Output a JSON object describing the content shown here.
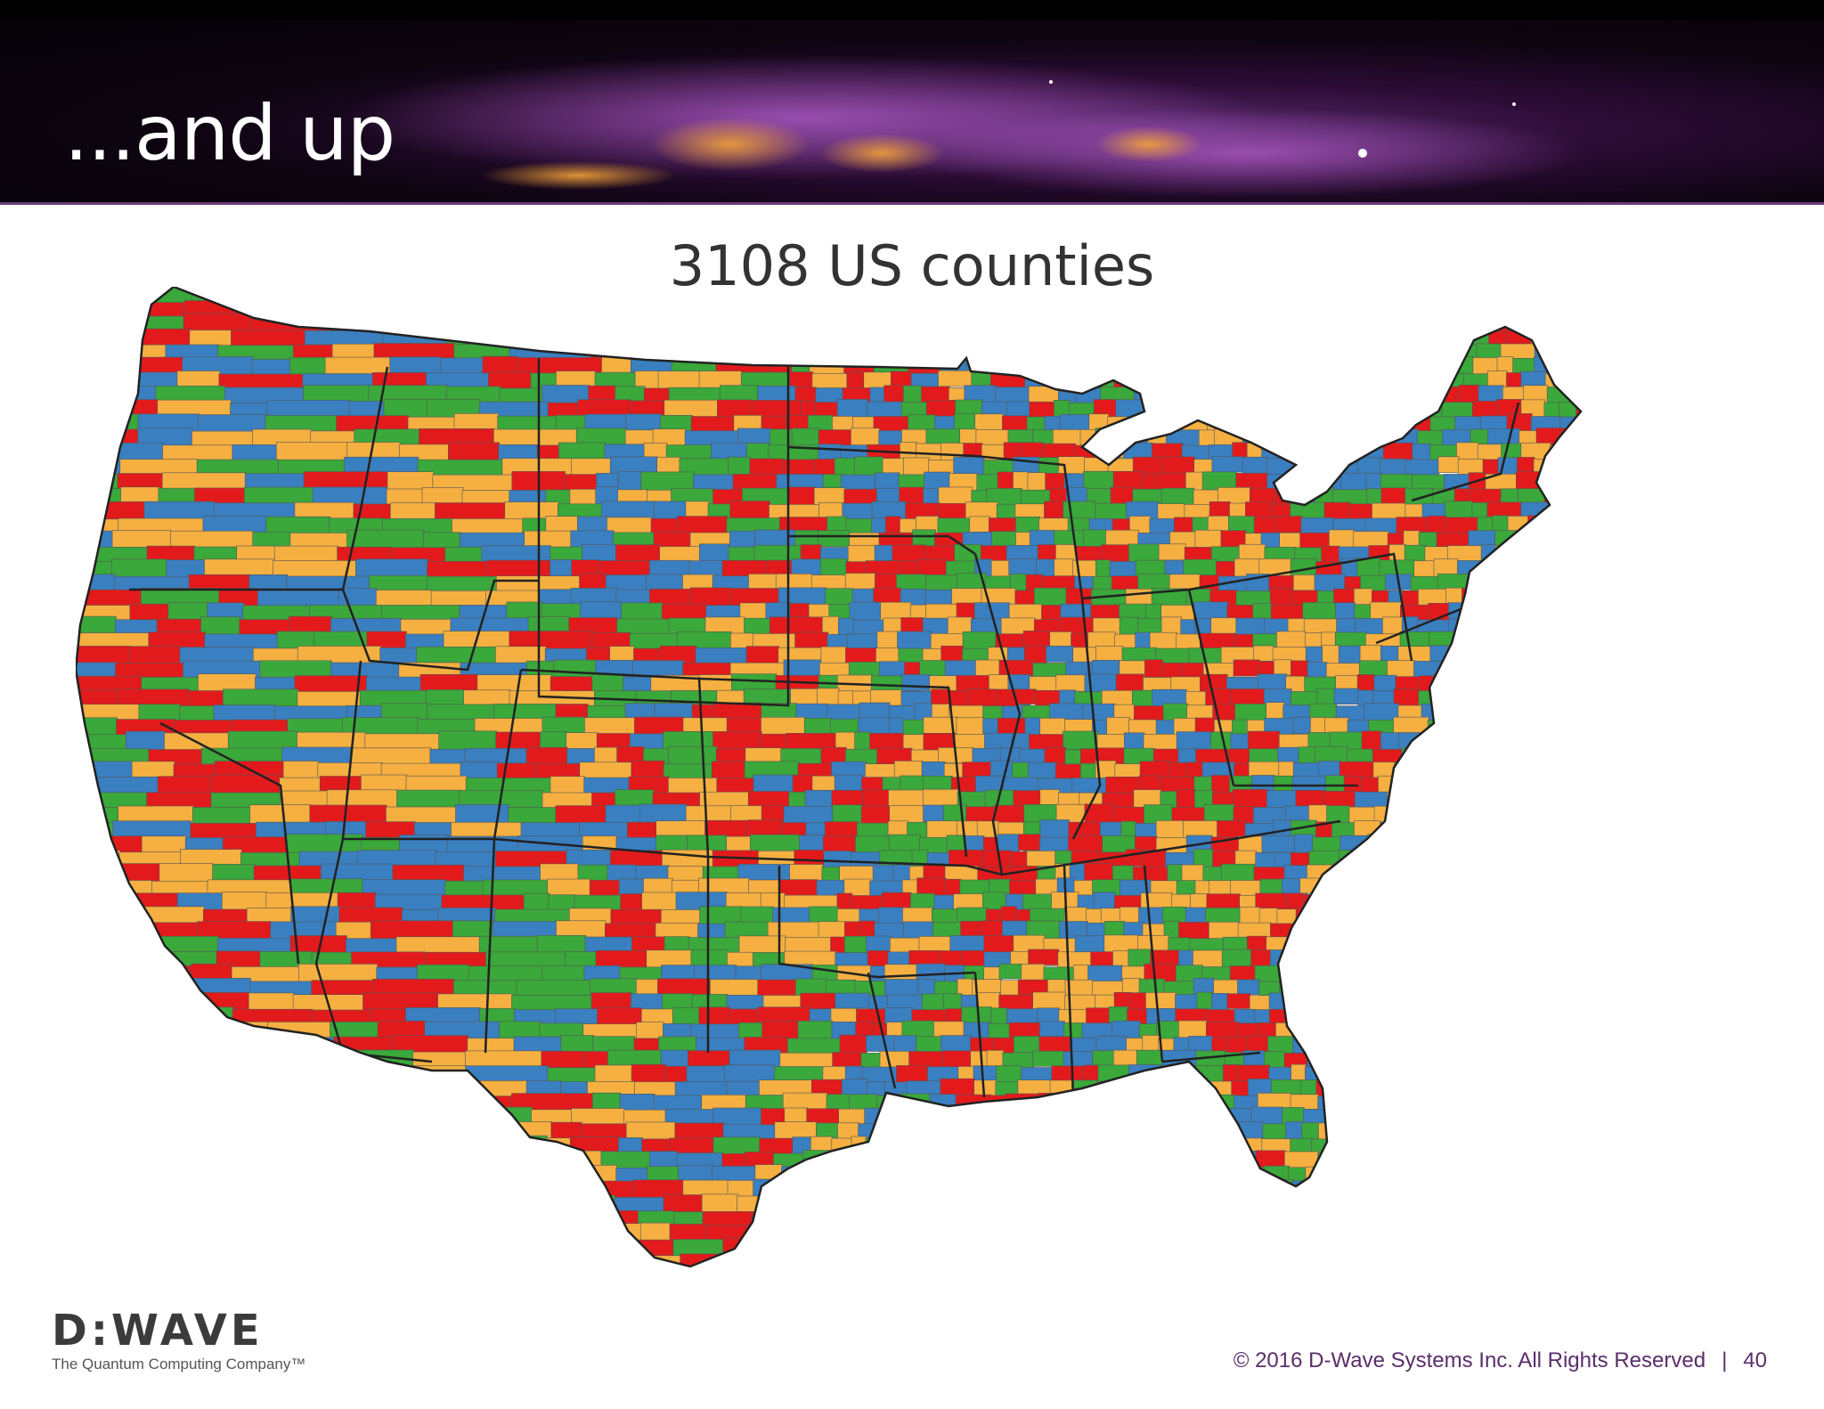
{
  "slide": {
    "title": "...and up",
    "page_number": "40"
  },
  "map": {
    "title": "3108 US counties",
    "region": "Contiguous United States",
    "palette": [
      "#e31a1c",
      "#3a7fc0",
      "#f5b041",
      "#3aa83a"
    ],
    "state_border_color": "#222222"
  },
  "branding": {
    "logo_text": "D:WAVE",
    "tagline": "The Quantum Computing Company™"
  },
  "footer": {
    "copyright": "© 2016 D-Wave Systems Inc. All Rights Reserved",
    "separator": "|"
  }
}
